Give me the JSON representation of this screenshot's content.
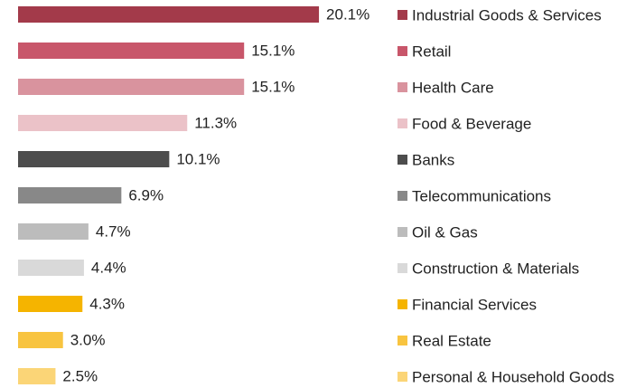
{
  "chart_data": {
    "type": "bar",
    "orientation": "horizontal",
    "categories": [
      "Industrial Goods & Services",
      "Retail",
      "Health Care",
      "Food & Beverage",
      "Banks",
      "Telecommunications",
      "Oil & Gas",
      "Construction & Materials",
      "Financial Services",
      "Real Estate",
      "Personal & Household Goods"
    ],
    "values": [
      20.1,
      15.1,
      15.1,
      11.3,
      10.1,
      6.9,
      4.7,
      4.4,
      4.3,
      3.0,
      2.5
    ],
    "value_labels": [
      "20.1%",
      "15.1%",
      "15.1%",
      "11.3%",
      "10.1%",
      "6.9%",
      "4.7%",
      "4.4%",
      "4.3%",
      "3.0%",
      "2.5%"
    ],
    "colors": [
      "#a33a4a",
      "#c8566a",
      "#d9939e",
      "#ebc2c8",
      "#4d4d4d",
      "#888888",
      "#bcbcbc",
      "#d9d9d9",
      "#f5b400",
      "#f8c440",
      "#fbd577"
    ],
    "legend": "right"
  }
}
